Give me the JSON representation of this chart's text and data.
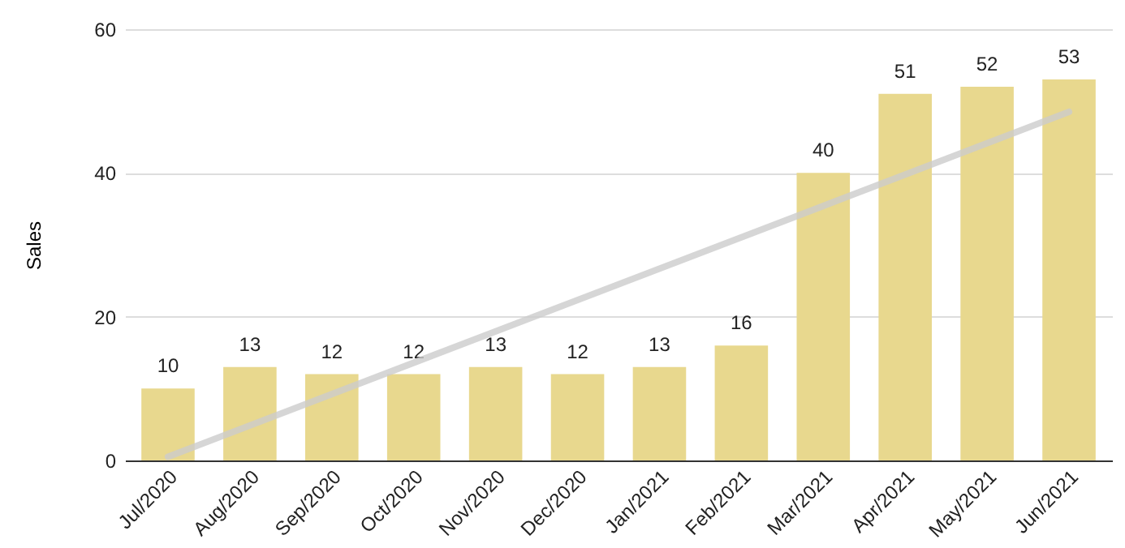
{
  "chart_data": {
    "type": "bar",
    "ylabel": "Sales",
    "categories": [
      "Jul/2020",
      "Aug/2020",
      "Sep/2020",
      "Oct/2020",
      "Nov/2020",
      "Dec/2020",
      "Jan/2021",
      "Feb/2021",
      "Mar/2021",
      "Apr/2021",
      "May/2021",
      "Jun/2021"
    ],
    "series": [
      {
        "color": "#e8d88e",
        "values": [
          10,
          13,
          12,
          12,
          13,
          12,
          13,
          16,
          40,
          51,
          52,
          53
        ],
        "value_labels": [
          "10",
          "13",
          "12",
          "12",
          "13",
          "12",
          "13",
          "16",
          "40",
          "51",
          "52",
          "53"
        ]
      },
      {
        "type": "line",
        "color": "#cccccc",
        "x": [
          "Jul/2020",
          "Jun/2021"
        ],
        "values": [
          0.5,
          48.5
        ]
      }
    ],
    "ylim": [
      0,
      60
    ],
    "yticks": [
      0,
      20,
      40,
      60
    ],
    "grid": "y"
  }
}
